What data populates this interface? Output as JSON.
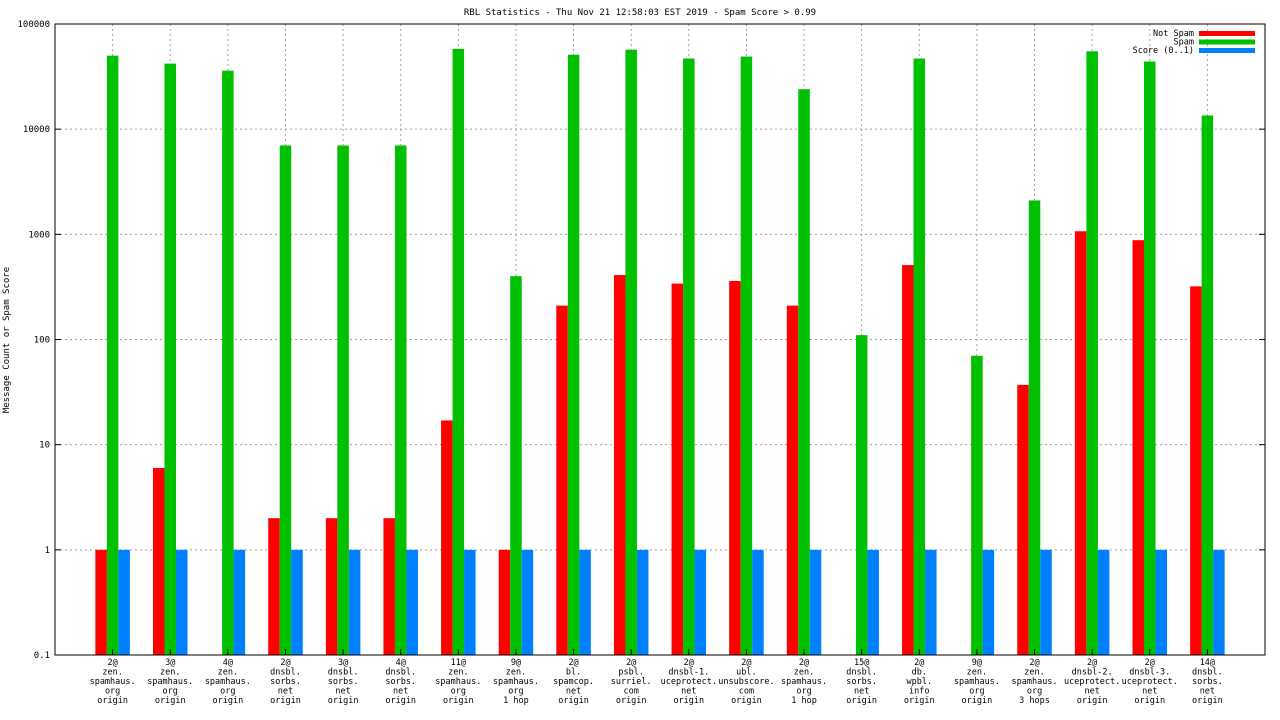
{
  "chart_data": {
    "type": "bar",
    "title": "RBL Statistics - Thu Nov 21 12:58:03 EST 2019 - Spam Score > 0.99",
    "xlabel": "",
    "ylabel": "Message Count or Spam Score",
    "yscale": "log",
    "ylim": [
      0.1,
      100000
    ],
    "yticks": [
      "0.1",
      "1",
      "10",
      "100",
      "1000",
      "10000",
      "100000"
    ],
    "grid": true,
    "legend_position": "top-right",
    "categories": [
      [
        "2@",
        "zen.",
        "spamhaus.",
        "org",
        "origin"
      ],
      [
        "3@",
        "zen.",
        "spamhaus.",
        "org",
        "origin"
      ],
      [
        "4@",
        "zen.",
        "spamhaus.",
        "org",
        "origin"
      ],
      [
        "2@",
        "dnsbl.",
        "sorbs.",
        "net",
        "origin"
      ],
      [
        "3@",
        "dnsbl.",
        "sorbs.",
        "net",
        "origin"
      ],
      [
        "4@",
        "dnsbl.",
        "sorbs.",
        "net",
        "origin"
      ],
      [
        "11@",
        "zen.",
        "spamhaus.",
        "org",
        "origin"
      ],
      [
        "9@",
        "zen.",
        "spamhaus.",
        "org",
        "1 hop"
      ],
      [
        "2@",
        "bl.",
        "spamcop.",
        "net",
        "origin"
      ],
      [
        "2@",
        "psbl.",
        "surriel.",
        "com",
        "origin"
      ],
      [
        "2@",
        "dnsbl-1.",
        "uceprotect.",
        "net",
        "origin"
      ],
      [
        "2@",
        "ubl.",
        "unsubscore.",
        "com",
        "origin"
      ],
      [
        "2@",
        "zen.",
        "spamhaus.",
        "org",
        "1 hop"
      ],
      [
        "15@",
        "dnsbl.",
        "sorbs.",
        "net",
        "origin"
      ],
      [
        "2@",
        "db.",
        "wpbl.",
        "info",
        "origin"
      ],
      [
        "9@",
        "zen.",
        "spamhaus.",
        "org",
        "origin"
      ],
      [
        "2@",
        "zen.",
        "spamhaus.",
        "org",
        "3 hops"
      ],
      [
        "2@",
        "dnsbl-2.",
        "uceprotect.",
        "net",
        "origin"
      ],
      [
        "2@",
        "dnsbl-3.",
        "uceprotect.",
        "net",
        "origin"
      ],
      [
        "14@",
        "dnsbl.",
        "sorbs.",
        "net",
        "origin"
      ]
    ],
    "series": [
      {
        "name": "Not Spam",
        "color": "#ff0000",
        "values": [
          1,
          6,
          null,
          2,
          2,
          2,
          17,
          1,
          210,
          410,
          340,
          360,
          210,
          null,
          510,
          null,
          37,
          1070,
          880,
          320
        ]
      },
      {
        "name": "Spam",
        "color": "#00c000",
        "values": [
          50000,
          42000,
          36000,
          7000,
          7000,
          7000,
          58000,
          400,
          51000,
          57000,
          47000,
          49000,
          24000,
          110,
          47000,
          70,
          2100,
          55000,
          44000,
          13500
        ]
      },
      {
        "name": "Score (0..1)",
        "color": "#0080ff",
        "values": [
          1,
          1,
          1,
          1,
          1,
          1,
          1,
          1,
          1,
          1,
          1,
          1,
          1,
          1,
          1,
          1,
          1,
          1,
          1,
          1
        ]
      }
    ]
  }
}
